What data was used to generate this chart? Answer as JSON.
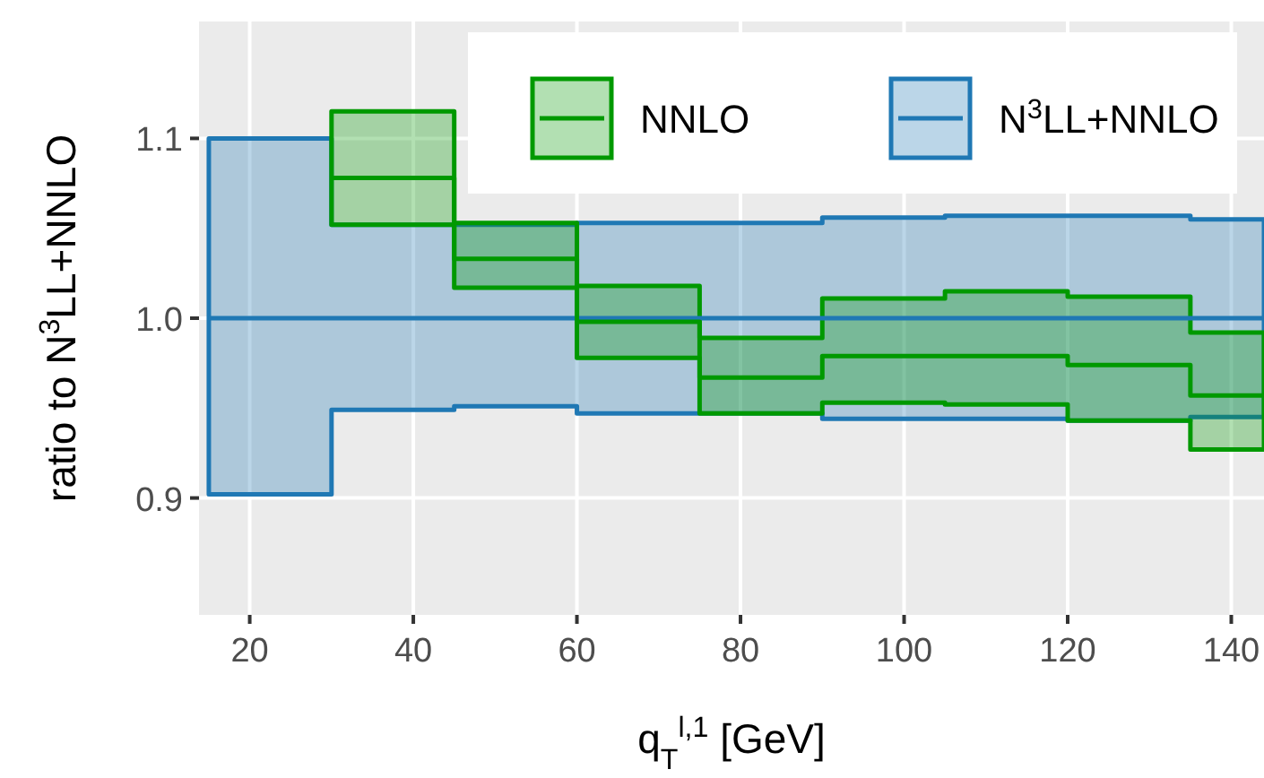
{
  "chart_data": {
    "type": "step",
    "xlabel": "q$_{T}$$^{l,1}$ [GeV]",
    "ylabel": "ratio to N$^{3}$LL+NNLO",
    "x": [
      15,
      30,
      45,
      60,
      75,
      90,
      105,
      120,
      135,
      144
    ],
    "xlim": [
      13.8,
      144
    ],
    "ylim": [
      0.835,
      1.165
    ],
    "xticks": [
      20,
      40,
      60,
      80,
      100,
      120,
      140
    ],
    "yticks": [
      {
        "value": 0.9,
        "label": "0.9"
      },
      {
        "value": 1.0,
        "label": "1.0"
      },
      {
        "value": 1.1,
        "label": "1.1"
      }
    ],
    "grid": true,
    "legend": "top right",
    "line_style": "solid",
    "marker": "none",
    "series": [
      {
        "name": "N$^{3}$LL+NNLO",
        "color": "#1f78b4",
        "values": [
          1,
          1,
          1,
          1,
          1,
          1,
          1,
          1,
          1,
          1
        ],
        "lower": [
          0.902,
          0.949,
          0.951,
          0.947,
          0.947,
          0.944,
          0.944,
          0.943,
          0.945,
          0.945
        ],
        "upper": [
          1.1,
          1.052,
          1.052,
          1.053,
          1.053,
          1.056,
          1.057,
          1.057,
          1.055,
          1.055
        ]
      },
      {
        "name": "NNLO",
        "color": "#009900",
        "values": [
          null,
          1.078,
          1.033,
          0.998,
          0.967,
          0.979,
          0.979,
          0.974,
          0.957,
          0.957
        ],
        "lower": [
          null,
          1.052,
          1.017,
          0.978,
          0.947,
          0.953,
          0.952,
          0.943,
          0.927,
          0.927
        ],
        "upper": [
          null,
          1.115,
          1.053,
          1.018,
          0.989,
          1.011,
          1.015,
          1.012,
          0.992,
          0.992
        ]
      }
    ]
  }
}
